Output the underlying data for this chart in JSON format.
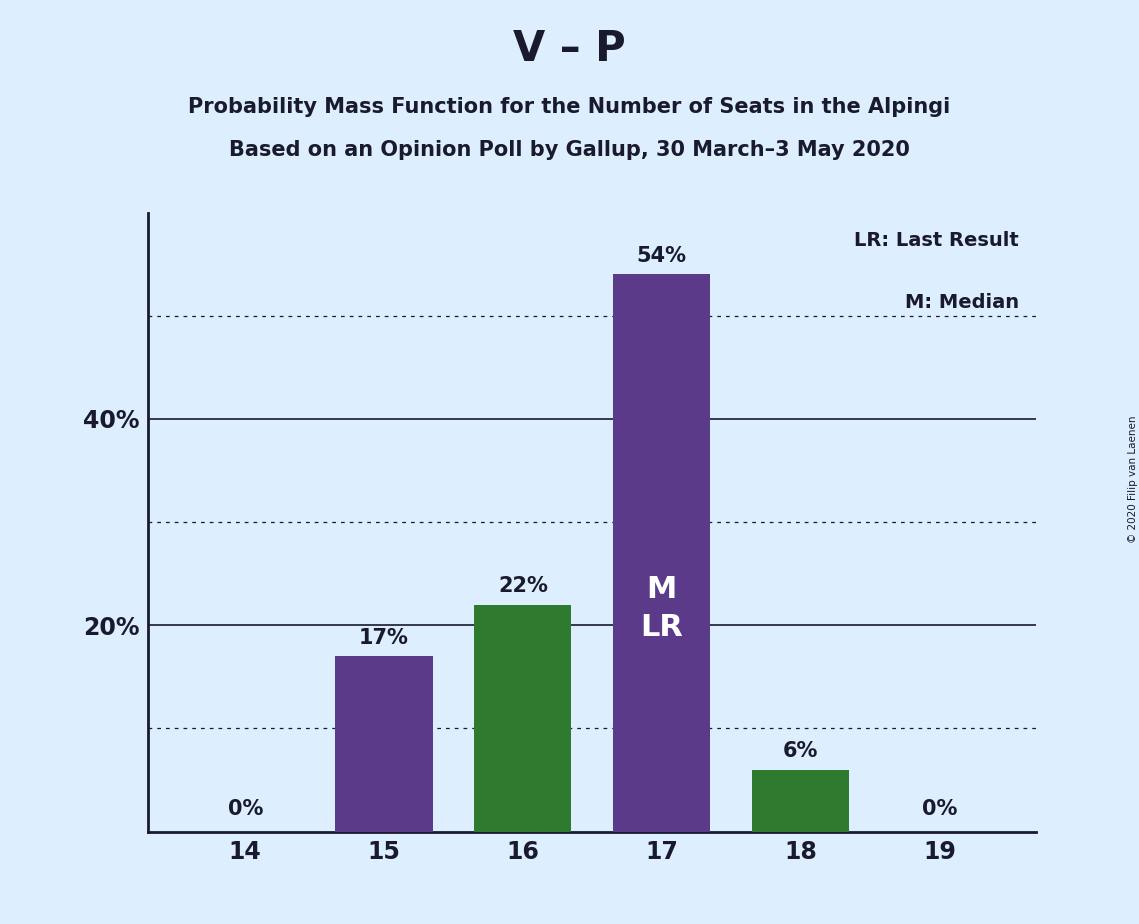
{
  "title_main": "V – P",
  "title_sub1": "Probability Mass Function for the Number of Seats in the Alpingi",
  "title_sub2": "Based on an Opinion Poll by Gallup, 30 March–3 May 2020",
  "copyright": "© 2020 Filip van Laenen",
  "categories": [
    14,
    15,
    16,
    17,
    18,
    19
  ],
  "values": [
    0,
    17,
    22,
    54,
    6,
    0
  ],
  "bar_colors": [
    "#5b3a8a",
    "#5b3a8a",
    "#2e7a2e",
    "#5b3a8a",
    "#2e7a2e",
    "#2e7a2e"
  ],
  "median_bar": 17,
  "last_result_bar": 17,
  "legend_lr": "LR: Last Result",
  "legend_m": "M: Median",
  "ytick_major": [
    20,
    40
  ],
  "ytick_minor": [
    10,
    30,
    50
  ],
  "ylim": [
    0,
    60
  ],
  "background_color": "#ddeeff",
  "bar_width": 0.7,
  "annotation_inside_bar": 17,
  "inside_text": "M\nLR",
  "inside_text_color": "#ffffff",
  "text_color": "#1a1a2e",
  "xlim": [
    13.3,
    19.7
  ]
}
